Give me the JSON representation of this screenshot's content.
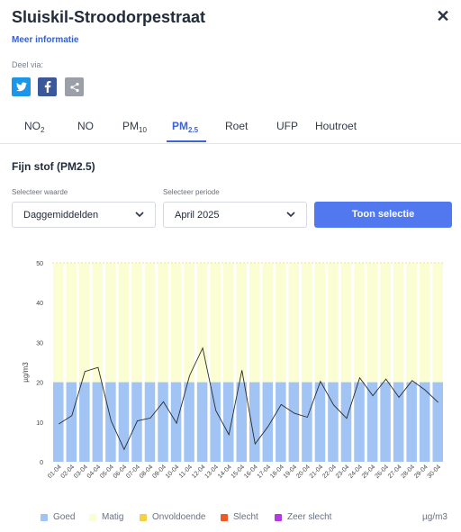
{
  "header": {
    "title": "Sluiskil-Stroodorpestraat",
    "more_info": "Meer informatie",
    "close_symbol": "✕"
  },
  "share": {
    "label": "Deel via:",
    "buttons": [
      {
        "name": "twitter",
        "icon": "twitter-icon",
        "color": "#1c96e8"
      },
      {
        "name": "facebook",
        "icon": "facebook-icon",
        "color": "#3b5998"
      },
      {
        "name": "share",
        "icon": "share-icon",
        "color": "#9ba0a8"
      }
    ]
  },
  "tabs": [
    {
      "main": "NO",
      "sub": "2",
      "active": false
    },
    {
      "main": "NO",
      "sub": "",
      "active": false
    },
    {
      "main": "PM",
      "sub": "10",
      "active": false
    },
    {
      "main": "PM",
      "sub": "2.5",
      "active": true
    },
    {
      "main": "Roet",
      "sub": "",
      "active": false
    },
    {
      "main": "UFP",
      "sub": "",
      "active": false
    },
    {
      "main": "Houtroet",
      "sub": "",
      "active": false
    }
  ],
  "section": {
    "title": "Fijn stof (PM2.5)"
  },
  "controls": {
    "value_label": "Selecteer waarde",
    "value_selected": "Daggemiddelden",
    "period_label": "Selecteer periode",
    "period_selected": "April 2025",
    "submit": "Toon selectie"
  },
  "chart_data": {
    "type": "bar",
    "ylabel": "µg/m3",
    "ylim": [
      0,
      50
    ],
    "yticks": [
      0,
      10,
      20,
      30,
      40,
      50
    ],
    "categories": [
      "01-04",
      "02-04",
      "03-04",
      "04-04",
      "05-04",
      "06-04",
      "07-04",
      "08-04",
      "09-04",
      "10-04",
      "11-04",
      "12-04",
      "13-04",
      "14-04",
      "15-04",
      "16-04",
      "17-04",
      "18-04",
      "19-04",
      "20-04",
      "21-04",
      "22-04",
      "23-04",
      "24-04",
      "25-04",
      "26-04",
      "27-04",
      "28-04",
      "29-04",
      "30-04"
    ],
    "bands": [
      {
        "name": "Goed",
        "from": 0,
        "to": 20,
        "color": "#a2c4f5"
      },
      {
        "name": "Matig",
        "from": 20,
        "to": 50,
        "color": "#fbfdd3"
      }
    ],
    "series": [
      {
        "values": [
          9.5,
          11.6,
          22.7,
          23.7,
          10.3,
          3.1,
          10.3,
          11.0,
          15.1,
          9.7,
          21.7,
          28.6,
          12.9,
          6.8,
          23.0,
          4.5,
          8.9,
          14.4,
          12.2,
          11.2,
          20.2,
          14.3,
          10.9,
          21.1,
          16.6,
          20.8,
          16.2,
          20.4,
          18.0,
          14.9
        ],
        "color": "#2b2b2b"
      }
    ],
    "legend": [
      {
        "label": "Goed",
        "color": "#a2c4f5"
      },
      {
        "label": "Matig",
        "color": "#fbfdd3"
      },
      {
        "label": "Onvoldoende",
        "color": "#f7cf45"
      },
      {
        "label": "Slecht",
        "color": "#ee5a24"
      },
      {
        "label": "Zeer slecht",
        "color": "#b43ae0"
      }
    ],
    "legend_position": "bottom",
    "unit": "µg/m3"
  }
}
